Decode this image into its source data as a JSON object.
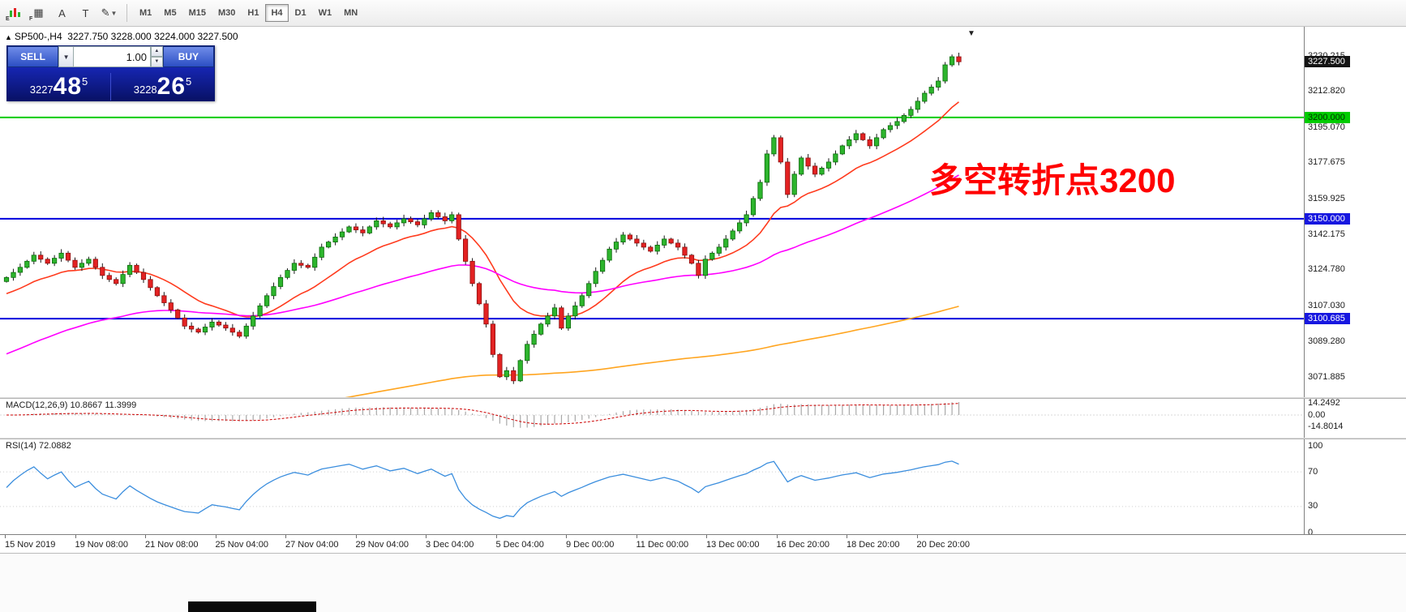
{
  "toolbar": {
    "tools": [
      {
        "name": "charts-icon",
        "glyph": "bars",
        "sub": "E"
      },
      {
        "name": "profiles-icon",
        "glyph": "▦",
        "sub": "F"
      },
      {
        "name": "font-icon",
        "glyph": "A",
        "sub": ""
      },
      {
        "name": "text-label-icon",
        "glyph": "T",
        "sub": ""
      },
      {
        "name": "draw-tools-icon",
        "glyph": "✎",
        "sub": "",
        "dropdown": true
      }
    ],
    "timeframes": [
      "M1",
      "M5",
      "M15",
      "M30",
      "H1",
      "H4",
      "D1",
      "W1",
      "MN"
    ],
    "active_timeframe": "H4"
  },
  "quote_line": {
    "symbol": "SP500-,H4",
    "ohlc": "3227.750 3228.000 3224.000 3227.500"
  },
  "trade_panel": {
    "sell_label": "SELL",
    "buy_label": "BUY",
    "volume": "1.00",
    "bid_prefix": "3227",
    "bid_big": "48",
    "bid_sup": "5",
    "ask_prefix": "3228",
    "ask_big": "26",
    "ask_sup": "5"
  },
  "annotation": {
    "text": "多空转折点3200",
    "color": "#ff0000"
  },
  "chart_data": {
    "type": "candlestick",
    "title": "SP500- H4 chart",
    "symbol": "SP500-",
    "timeframe": "H4",
    "y_range": [
      3062,
      3245
    ],
    "y_ticks": [
      "3230.215",
      "3212.820",
      "3195.070",
      "3177.675",
      "3159.925",
      "3142.175",
      "3124.780",
      "3107.030",
      "3089.280",
      "3071.885"
    ],
    "current_price": {
      "value": 3227.5,
      "text": "3227.500",
      "bg": "#141414",
      "fg": "#ffffff"
    },
    "levels": [
      {
        "price": 3200.0,
        "label": "3200.000",
        "line_color": "#00cc00",
        "label_bg": "#00cc00",
        "label_fg": "#003300"
      },
      {
        "price": 3150.0,
        "label": "3150.000",
        "line_color": "#0000dd",
        "label_bg": "#1717e0",
        "label_fg": "#ffffff"
      },
      {
        "price": 3100.685,
        "label": "3100.685",
        "line_color": "#0000dd",
        "label_bg": "#1717e0",
        "label_fg": "#ffffff"
      }
    ],
    "x_labels": [
      "15 Nov 2019",
      "19 Nov 08:00",
      "21 Nov 08:00",
      "25 Nov 04:00",
      "27 Nov 04:00",
      "29 Nov 04:00",
      "3 Dec 04:00",
      "5 Dec 04:00",
      "9 Dec 00:00",
      "11 Dec 00:00",
      "13 Dec 00:00",
      "16 Dec 20:00",
      "18 Dec 20:00",
      "20 Dec 20:00"
    ],
    "first_open": 3119,
    "closes": [
      3121,
      3123.5,
      3126,
      3129,
      3132,
      3130,
      3128,
      3130.5,
      3133,
      3129.5,
      3126,
      3128,
      3130,
      3126,
      3122,
      3120,
      3118,
      3122.5,
      3127,
      3123.5,
      3120,
      3116,
      3112,
      3108.5,
      3105,
      3101,
      3097,
      3095.5,
      3094,
      3096.5,
      3099,
      3097.5,
      3096,
      3094,
      3092,
      3097,
      3102,
      3107,
      3112,
      3116.5,
      3121,
      3124.5,
      3128,
      3127,
      3126,
      3131,
      3136,
      3138.5,
      3141,
      3143.5,
      3146,
      3144.5,
      3143,
      3146,
      3149,
      3147.5,
      3146,
      3148,
      3150,
      3148.5,
      3147,
      3150,
      3153,
      3151,
      3149,
      3152,
      3140,
      3129,
      3118,
      3108,
      3098,
      3083,
      3072,
      3075,
      3070,
      3080,
      3088,
      3093,
      3098,
      3102,
      3106,
      3096,
      3102,
      3107,
      3112,
      3118,
      3124,
      3129.5,
      3135,
      3138.5,
      3142,
      3140,
      3138,
      3136,
      3134,
      3137,
      3140,
      3138,
      3136,
      3132,
      3128,
      3122,
      3130,
      3133,
      3136,
      3140,
      3144,
      3148,
      3152,
      3160,
      3168,
      3182,
      3190,
      3178,
      3162,
      3172,
      3180,
      3176,
      3172,
      3175,
      3178,
      3182,
      3186,
      3189,
      3192,
      3189,
      3186,
      3190,
      3194,
      3196,
      3198,
      3201,
      3204,
      3208,
      3212,
      3215,
      3218,
      3226,
      3230,
      3227.5
    ],
    "candle_colors": {
      "up_fill": "#2db52d",
      "up_edge": "#0a6a0a",
      "down_fill": "#e32222",
      "down_edge": "#8c0f0f",
      "wick": "#1a1a1a"
    },
    "moving_averages": [
      {
        "name": "fast",
        "color": "#ff3b1e",
        "period": 16,
        "seed": 3112
      },
      {
        "name": "medium",
        "color": "#ff00ff",
        "period": 60,
        "seed": 3082
      },
      {
        "name": "slow",
        "color": "#ffa520",
        "period": 270,
        "seed": 3036
      }
    ],
    "indicators": {
      "macd": {
        "label": "MACD(12,26,9)",
        "main_text": "10.8667",
        "signal_text": "11.3999",
        "fast": 12,
        "slow": 26,
        "smooth": 9,
        "axis": [
          {
            "value": 14.2492,
            "text": "14.2492"
          },
          {
            "value": 0,
            "text": "0.00"
          },
          {
            "value": -14.8014,
            "text": "-14.8014"
          }
        ],
        "histogram_color": "#a8a8a8",
        "signal_color": "#cc0000"
      },
      "rsi": {
        "label": "RSI(14)",
        "value_text": "72.0882",
        "period": 14,
        "axis": [
          {
            "value": 100,
            "text": "100"
          },
          {
            "value": 70,
            "text": "70"
          },
          {
            "value": 30,
            "text": "30"
          },
          {
            "value": 0,
            "text": "0"
          }
        ],
        "level_lines": [
          70,
          30
        ],
        "line_color": "#3b8ede"
      }
    }
  }
}
